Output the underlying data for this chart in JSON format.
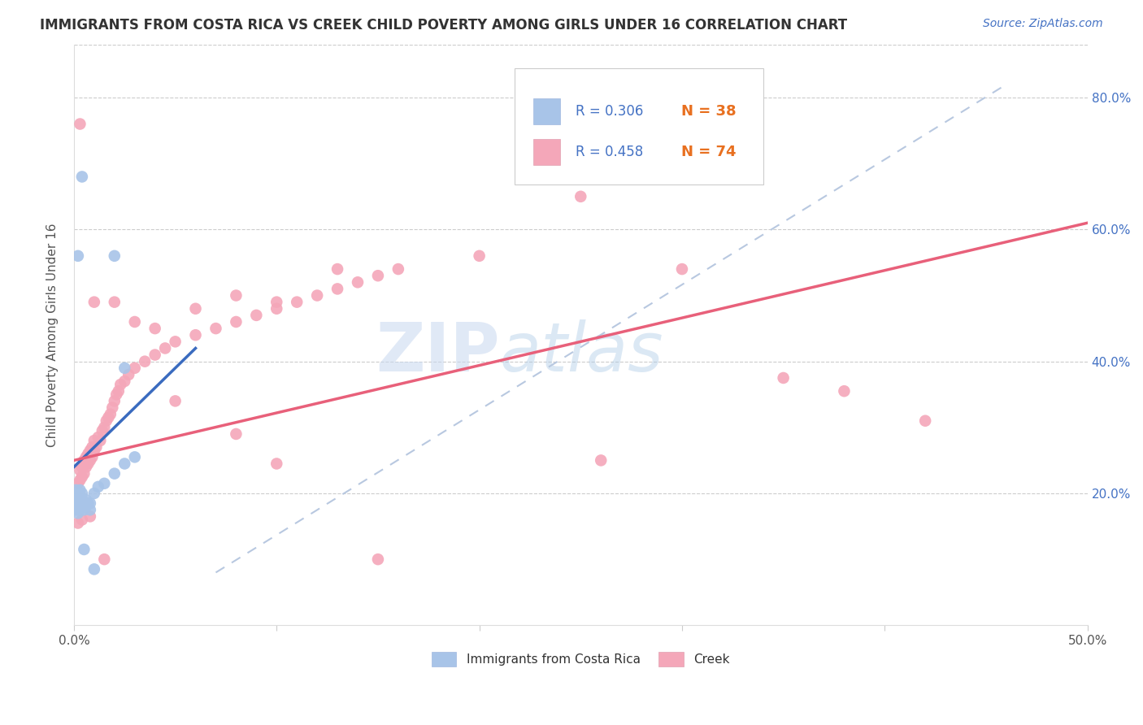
{
  "title": "IMMIGRANTS FROM COSTA RICA VS CREEK CHILD POVERTY AMONG GIRLS UNDER 16 CORRELATION CHART",
  "source": "Source: ZipAtlas.com",
  "ylabel": "Child Poverty Among Girls Under 16",
  "watermark_zip": "ZIP",
  "watermark_atlas": "atlas",
  "xlim": [
    0.0,
    0.5
  ],
  "ylim": [
    0.0,
    0.88
  ],
  "yticks": [
    0.2,
    0.4,
    0.6,
    0.8
  ],
  "yticklabels": [
    "20.0%",
    "40.0%",
    "60.0%",
    "80.0%"
  ],
  "blue_color": "#a8c4e8",
  "pink_color": "#f4a7b9",
  "blue_line_color": "#3a6bbf",
  "pink_line_color": "#e8607a",
  "dashed_line_color": "#b8c8e0",
  "blue_scatter": [
    [
      0.001,
      0.175
    ],
    [
      0.001,
      0.18
    ],
    [
      0.001,
      0.185
    ],
    [
      0.001,
      0.195
    ],
    [
      0.001,
      0.2
    ],
    [
      0.001,
      0.205
    ],
    [
      0.002,
      0.17
    ],
    [
      0.002,
      0.18
    ],
    [
      0.002,
      0.185
    ],
    [
      0.002,
      0.19
    ],
    [
      0.002,
      0.195
    ],
    [
      0.002,
      0.2
    ],
    [
      0.003,
      0.175
    ],
    [
      0.003,
      0.185
    ],
    [
      0.003,
      0.195
    ],
    [
      0.003,
      0.205
    ],
    [
      0.004,
      0.18
    ],
    [
      0.004,
      0.19
    ],
    [
      0.004,
      0.2
    ],
    [
      0.005,
      0.175
    ],
    [
      0.005,
      0.185
    ],
    [
      0.006,
      0.18
    ],
    [
      0.006,
      0.19
    ],
    [
      0.007,
      0.185
    ],
    [
      0.008,
      0.175
    ],
    [
      0.008,
      0.185
    ],
    [
      0.01,
      0.2
    ],
    [
      0.012,
      0.21
    ],
    [
      0.015,
      0.215
    ],
    [
      0.02,
      0.23
    ],
    [
      0.025,
      0.245
    ],
    [
      0.03,
      0.255
    ],
    [
      0.002,
      0.56
    ],
    [
      0.004,
      0.68
    ],
    [
      0.02,
      0.56
    ],
    [
      0.025,
      0.39
    ],
    [
      0.005,
      0.115
    ],
    [
      0.01,
      0.085
    ]
  ],
  "pink_scatter": [
    [
      0.002,
      0.215
    ],
    [
      0.003,
      0.22
    ],
    [
      0.003,
      0.235
    ],
    [
      0.004,
      0.225
    ],
    [
      0.004,
      0.24
    ],
    [
      0.005,
      0.23
    ],
    [
      0.005,
      0.25
    ],
    [
      0.006,
      0.24
    ],
    [
      0.006,
      0.255
    ],
    [
      0.007,
      0.245
    ],
    [
      0.007,
      0.26
    ],
    [
      0.008,
      0.25
    ],
    [
      0.008,
      0.265
    ],
    [
      0.009,
      0.255
    ],
    [
      0.009,
      0.27
    ],
    [
      0.01,
      0.265
    ],
    [
      0.01,
      0.28
    ],
    [
      0.011,
      0.27
    ],
    [
      0.012,
      0.285
    ],
    [
      0.013,
      0.28
    ],
    [
      0.014,
      0.295
    ],
    [
      0.015,
      0.3
    ],
    [
      0.016,
      0.31
    ],
    [
      0.017,
      0.315
    ],
    [
      0.018,
      0.32
    ],
    [
      0.019,
      0.33
    ],
    [
      0.02,
      0.34
    ],
    [
      0.021,
      0.35
    ],
    [
      0.022,
      0.355
    ],
    [
      0.023,
      0.365
    ],
    [
      0.025,
      0.37
    ],
    [
      0.027,
      0.38
    ],
    [
      0.03,
      0.39
    ],
    [
      0.035,
      0.4
    ],
    [
      0.04,
      0.41
    ],
    [
      0.045,
      0.42
    ],
    [
      0.05,
      0.43
    ],
    [
      0.06,
      0.44
    ],
    [
      0.07,
      0.45
    ],
    [
      0.08,
      0.46
    ],
    [
      0.09,
      0.47
    ],
    [
      0.1,
      0.48
    ],
    [
      0.11,
      0.49
    ],
    [
      0.12,
      0.5
    ],
    [
      0.13,
      0.51
    ],
    [
      0.14,
      0.52
    ],
    [
      0.15,
      0.53
    ],
    [
      0.16,
      0.54
    ],
    [
      0.003,
      0.76
    ],
    [
      0.01,
      0.49
    ],
    [
      0.02,
      0.49
    ],
    [
      0.03,
      0.46
    ],
    [
      0.04,
      0.45
    ],
    [
      0.06,
      0.48
    ],
    [
      0.08,
      0.5
    ],
    [
      0.1,
      0.49
    ],
    [
      0.13,
      0.54
    ],
    [
      0.2,
      0.56
    ],
    [
      0.25,
      0.65
    ],
    [
      0.3,
      0.54
    ],
    [
      0.26,
      0.25
    ],
    [
      0.35,
      0.375
    ],
    [
      0.38,
      0.355
    ],
    [
      0.42,
      0.31
    ],
    [
      0.002,
      0.155
    ],
    [
      0.004,
      0.16
    ],
    [
      0.008,
      0.165
    ],
    [
      0.015,
      0.1
    ],
    [
      0.05,
      0.34
    ],
    [
      0.08,
      0.29
    ],
    [
      0.1,
      0.245
    ],
    [
      0.15,
      0.1
    ]
  ],
  "blue_line": [
    [
      0.0,
      0.24
    ],
    [
      0.06,
      0.42
    ]
  ],
  "pink_line": [
    [
      0.0,
      0.25
    ],
    [
      0.5,
      0.61
    ]
  ],
  "dashed_line": [
    [
      0.07,
      0.08
    ],
    [
      0.46,
      0.82
    ]
  ]
}
